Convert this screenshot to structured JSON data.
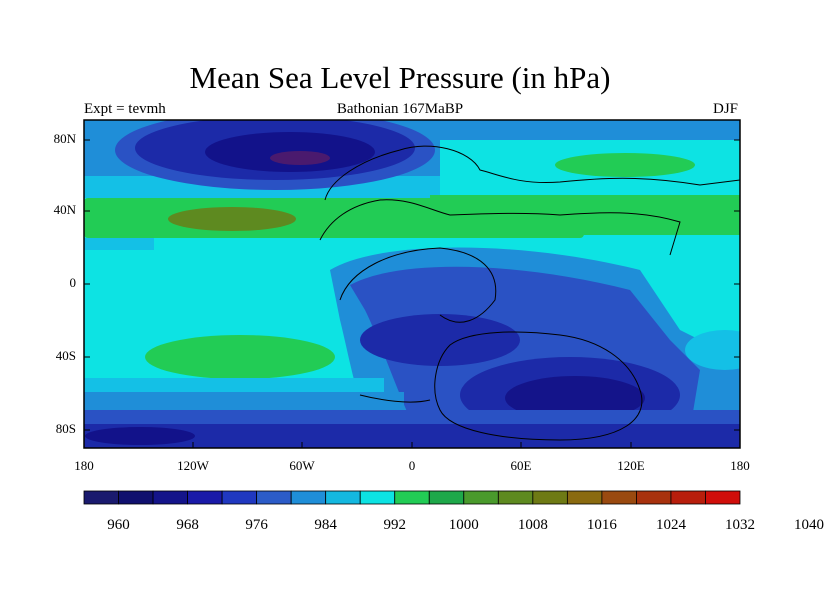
{
  "title": "Mean Sea Level Pressure (in hPa)",
  "subtitle_left": "Expt = tevmh",
  "subtitle_center": "Bathonian 167MaBP",
  "subtitle_right": "DJF",
  "lat_ticks": [
    "80N",
    "40N",
    "0",
    "40S",
    "80S"
  ],
  "lon_ticks": [
    "180",
    "120W",
    "60W",
    "0",
    "60E",
    "120E",
    "180"
  ],
  "colorbar": {
    "labels": [
      "960",
      "968",
      "976",
      "984",
      "992",
      "1000",
      "1008",
      "1016",
      "1024",
      "1032",
      "1040"
    ],
    "colors": [
      "#1a1a6e",
      "#10106e",
      "#14148a",
      "#1a1aa8",
      "#2038c0",
      "#2c5cc8",
      "#1f8ed8",
      "#14b8e0",
      "#0de3e3",
      "#22cc55",
      "#1ea84a",
      "#4a9a2c",
      "#5e8a20",
      "#6e7a14",
      "#8a6a10",
      "#9a4a10",
      "#a8320e",
      "#b81e0c",
      "#d00e0a"
    ],
    "units": "hPa"
  },
  "map_colors": {
    "deep_low": "#12128a",
    "low": "#1c2aa8",
    "mid_low": "#2a52c4",
    "light_blue": "#1f8ed8",
    "cyan_mid": "#14c0e6",
    "cyan": "#0de3e3",
    "green": "#22cc55",
    "dark_green": "#5e8a20",
    "purple_core": "#4a1a6e"
  }
}
